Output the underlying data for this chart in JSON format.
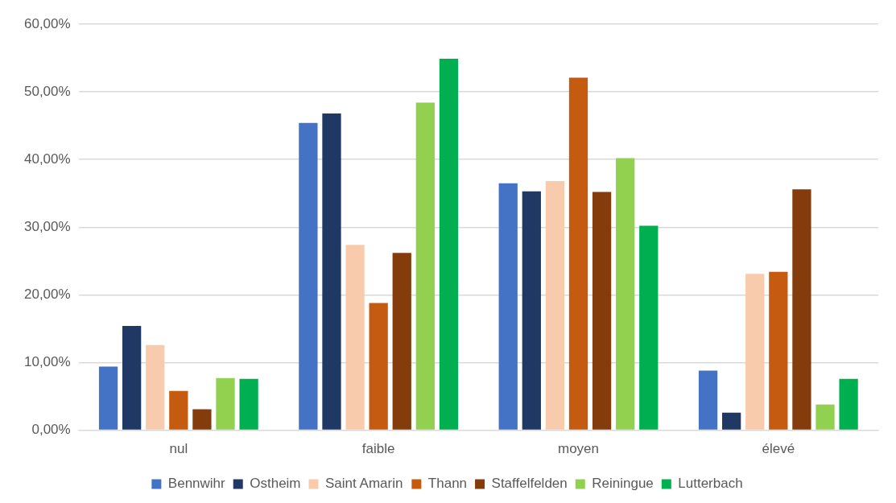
{
  "chart_data": {
    "type": "bar",
    "categories": [
      "nul",
      "faible",
      "moyen",
      "élevé"
    ],
    "series": [
      {
        "name": "Bennwihr",
        "color": "#4472c4",
        "values": [
          9.4,
          45.4,
          36.5,
          8.8
        ]
      },
      {
        "name": "Ostheim",
        "color": "#203864",
        "values": [
          15.4,
          46.8,
          35.3,
          2.6
        ]
      },
      {
        "name": "Saint Amarin",
        "color": "#f8cbad",
        "values": [
          12.6,
          27.4,
          36.8,
          23.1
        ]
      },
      {
        "name": "Thann",
        "color": "#c55a11",
        "values": [
          5.8,
          18.8,
          52.1,
          23.4
        ]
      },
      {
        "name": "Staffelfelden",
        "color": "#843c0c",
        "values": [
          3.1,
          26.2,
          35.2,
          35.6
        ]
      },
      {
        "name": "Reiningue",
        "color": "#92d050",
        "values": [
          7.7,
          48.4,
          40.2,
          3.8
        ]
      },
      {
        "name": "Lutterbach",
        "color": "#00b050",
        "values": [
          7.6,
          54.9,
          30.2,
          7.6
        ]
      }
    ],
    "ylim": [
      0,
      60
    ],
    "yticks": [
      {
        "value": 0,
        "label": "0,00%"
      },
      {
        "value": 10,
        "label": "10,00%"
      },
      {
        "value": 20,
        "label": "20,00%"
      },
      {
        "value": 30,
        "label": "30,00%"
      },
      {
        "value": 40,
        "label": "40,00%"
      },
      {
        "value": 50,
        "label": "50,00%"
      },
      {
        "value": 60,
        "label": "60,00%"
      }
    ],
    "grid": "y",
    "legend": "bottom"
  }
}
